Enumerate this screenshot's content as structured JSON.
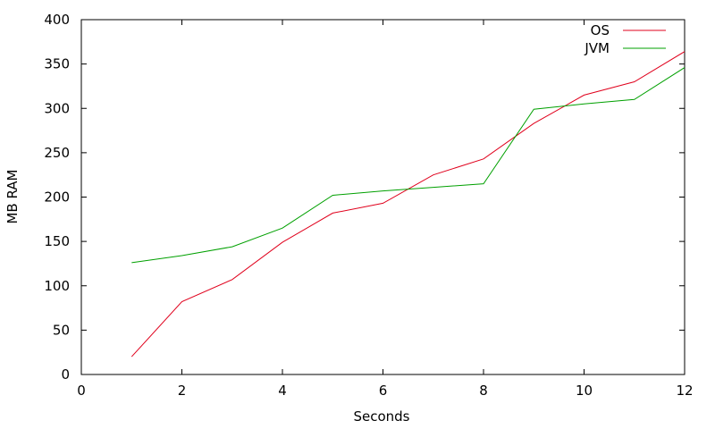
{
  "chart_data": {
    "type": "line",
    "title": "",
    "xlabel": "Seconds",
    "ylabel": "MB RAM",
    "xlim": [
      0,
      12
    ],
    "ylim": [
      0,
      400
    ],
    "xticks": [
      0,
      2,
      4,
      6,
      8,
      10,
      12
    ],
    "yticks": [
      0,
      50,
      100,
      150,
      200,
      250,
      300,
      350,
      400
    ],
    "grid": false,
    "legend_position": "top-right",
    "series": [
      {
        "name": "OS",
        "color": "#e0001c",
        "x": [
          1,
          2,
          3,
          4,
          5,
          6,
          7,
          8,
          9,
          10,
          11,
          12
        ],
        "y": [
          20,
          82,
          107,
          149,
          182,
          193,
          225,
          243,
          283,
          315,
          330,
          364
        ]
      },
      {
        "name": "JVM",
        "color": "#00a000",
        "x": [
          1,
          2,
          3,
          4,
          5,
          6,
          7,
          8,
          9,
          10,
          11,
          12
        ],
        "y": [
          126,
          134,
          144,
          165,
          202,
          207,
          211,
          215,
          299,
          305,
          310,
          346
        ]
      }
    ]
  }
}
